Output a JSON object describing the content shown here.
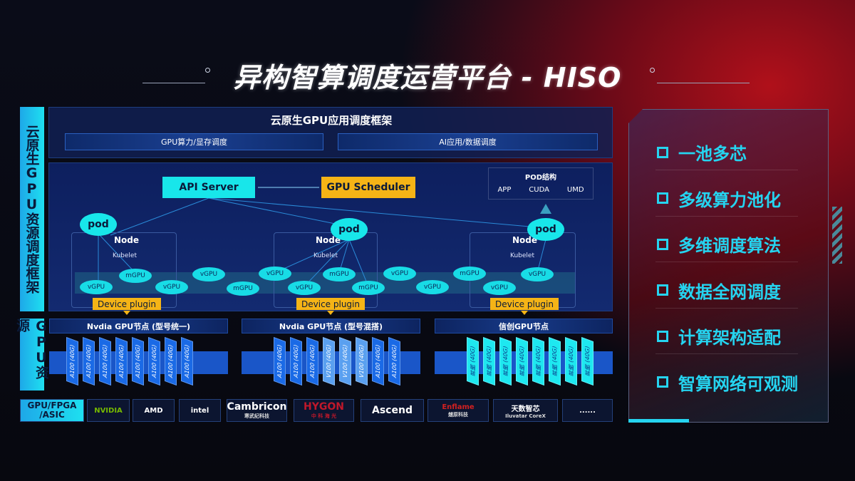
{
  "title": "异构智算调度运营平台 - HISO",
  "left_labels": {
    "framework": "云原生GPU资源调度框架",
    "resources": "GPU资源"
  },
  "framework": {
    "title": "云原生GPU应用调度框架",
    "sub1": "GPU算力/显存调度",
    "sub2": "AI应用/数据调度"
  },
  "diagram": {
    "api_server": "API Server",
    "gpu_scheduler": "GPU Scheduler",
    "pod_structure": {
      "title": "POD结构",
      "items": [
        "APP",
        "CUDA",
        "UMD"
      ]
    },
    "pod": "pod",
    "node": "Node",
    "kubelet": "Kubelet",
    "device_plugin": "Device plugin",
    "gpus": [
      "vGPU",
      "mGPU",
      "vGPU",
      "vGPU",
      "mGPU",
      "vGPU",
      "mGPU",
      "vGPU",
      "mGPU",
      "vGPU",
      "vGPU",
      "mGPU",
      "vGPU",
      "vGPU"
    ]
  },
  "gpu_nodes": [
    {
      "title": "Nvdia GPU节点 (型号统一)",
      "cards": [
        "A100 (40G)",
        "A100 (40G)",
        "A100 (40G)",
        "A100 (40G)",
        "A100 (40G)",
        "A100 (40G)",
        "A100 (40G)",
        "A100 (40G)"
      ]
    },
    {
      "title": "Nvdia GPU节点 (型号混搭)",
      "cards": [
        "A100 (40G)",
        "A100 (40G)",
        "A100 (40G)",
        "V100 (40G)",
        "V100 (40G)",
        "V100 (40G)",
        "A100 (40G)",
        "A100 (40G)"
      ]
    },
    {
      "title": "信创GPU节点",
      "cards": [
        "昇腾 (40G)",
        "昇腾 (40G)",
        "昇腾 (40G)",
        "昇腾 (40G)",
        "昇腾 (40G)",
        "昇腾 (40G)",
        "昇腾 (40G)",
        "昇腾 (40G)"
      ]
    }
  ],
  "vendors": {
    "label": "GPU/FPGA /ASIC",
    "items": [
      {
        "name": "NVIDIA",
        "sub": "",
        "color": "#76b900"
      },
      {
        "name": "AMD",
        "sub": "",
        "color": "#ffffff"
      },
      {
        "name": "intel",
        "sub": "",
        "color": "#ffffff"
      },
      {
        "name": "Cambricon",
        "sub": "寒武纪科技",
        "color": "#ffffff"
      },
      {
        "name": "HYGON",
        "sub": "中 科 海 光",
        "color": "#c0182a"
      },
      {
        "name": "Ascend",
        "sub": "",
        "color": "#ffffff"
      },
      {
        "name": "Enflame",
        "sub": "燧原科技",
        "color": "#d02020"
      },
      {
        "name": "天数智芯",
        "sub": "Iluvatar CoreX",
        "color": "#ffffff"
      },
      {
        "name": "......",
        "sub": "",
        "color": "#ffffff"
      }
    ]
  },
  "features": [
    "一池多芯",
    "多级算力池化",
    "多维调度算法",
    "数据全网调度",
    "计算架构适配",
    "智算网络可观测"
  ]
}
